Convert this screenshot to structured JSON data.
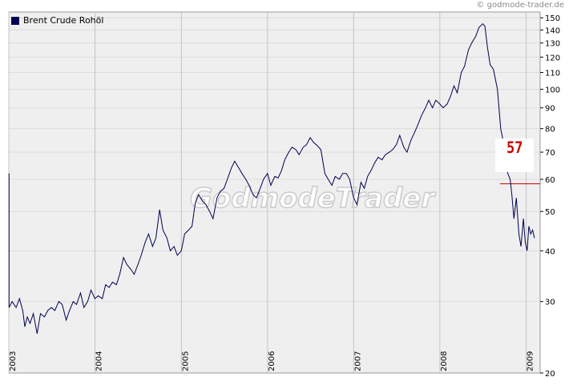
{
  "copyright": "© godmode-trader.de",
  "watermark": "GodmodeTrader",
  "colors": {
    "line": "#000050",
    "plot_bg": "#efefef",
    "grid": "#dcdcdc",
    "marker": "#cc0000"
  },
  "callout": {
    "label": "57",
    "level": 58.5
  },
  "chart_data": {
    "type": "line",
    "title": "",
    "xlabel": "",
    "ylabel": "",
    "yscale": "log",
    "ylim": [
      20,
      155
    ],
    "xlim": [
      "2003-01-01",
      "2009-03-01"
    ],
    "grid": true,
    "legend_position": "top-left",
    "y_ticks": [
      20,
      30,
      40,
      50,
      60,
      70,
      80,
      90,
      100,
      110,
      120,
      130,
      140,
      150
    ],
    "x_ticks": [
      "2003",
      "2004",
      "2005",
      "2006",
      "2007",
      "2008",
      "2009"
    ],
    "series": [
      {
        "name": "Brent Crude Rohöl",
        "x": [
          "2003-01-02",
          "2003-01-15",
          "2003-02-01",
          "2003-02-15",
          "2003-03-01",
          "2003-03-10",
          "2003-03-20",
          "2003-04-01",
          "2003-04-15",
          "2003-05-01",
          "2003-05-15",
          "2003-06-01",
          "2003-06-15",
          "2003-07-01",
          "2003-07-15",
          "2003-08-01",
          "2003-08-15",
          "2003-09-01",
          "2003-09-15",
          "2003-10-01",
          "2003-10-15",
          "2003-11-01",
          "2003-11-15",
          "2003-12-01",
          "2003-12-15",
          "2004-01-01",
          "2004-01-15",
          "2004-02-01",
          "2004-02-15",
          "2004-03-01",
          "2004-03-15",
          "2004-04-01",
          "2004-04-15",
          "2004-05-01",
          "2004-05-15",
          "2004-06-01",
          "2004-06-15",
          "2004-07-01",
          "2004-07-15",
          "2004-08-01",
          "2004-08-15",
          "2004-09-01",
          "2004-09-15",
          "2004-10-01",
          "2004-10-15",
          "2004-11-01",
          "2004-11-15",
          "2004-12-01",
          "2004-12-15",
          "2005-01-01",
          "2005-01-15",
          "2005-02-01",
          "2005-02-15",
          "2005-03-01",
          "2005-03-15",
          "2005-04-01",
          "2005-04-15",
          "2005-05-01",
          "2005-05-15",
          "2005-06-01",
          "2005-06-15",
          "2005-07-01",
          "2005-07-15",
          "2005-08-01",
          "2005-08-15",
          "2005-09-01",
          "2005-09-15",
          "2005-10-01",
          "2005-10-15",
          "2005-11-01",
          "2005-11-15",
          "2005-12-01",
          "2005-12-15",
          "2006-01-01",
          "2006-01-15",
          "2006-02-01",
          "2006-02-15",
          "2006-03-01",
          "2006-03-15",
          "2006-04-01",
          "2006-04-15",
          "2006-05-01",
          "2006-05-15",
          "2006-06-01",
          "2006-06-15",
          "2006-07-01",
          "2006-07-15",
          "2006-08-01",
          "2006-08-15",
          "2006-09-01",
          "2006-09-15",
          "2006-10-01",
          "2006-10-15",
          "2006-11-01",
          "2006-11-15",
          "2006-12-01",
          "2006-12-15",
          "2007-01-01",
          "2007-01-15",
          "2007-02-01",
          "2007-02-15",
          "2007-03-01",
          "2007-03-15",
          "2007-04-01",
          "2007-04-15",
          "2007-05-01",
          "2007-05-15",
          "2007-06-01",
          "2007-06-15",
          "2007-07-01",
          "2007-07-15",
          "2007-08-01",
          "2007-08-15",
          "2007-09-01",
          "2007-09-15",
          "2007-10-01",
          "2007-10-15",
          "2007-11-01",
          "2007-11-15",
          "2007-12-01",
          "2007-12-15",
          "2008-01-01",
          "2008-01-15",
          "2008-02-01",
          "2008-02-15",
          "2008-03-01",
          "2008-03-15",
          "2008-04-01",
          "2008-04-15",
          "2008-05-01",
          "2008-05-15",
          "2008-06-01",
          "2008-06-15",
          "2008-07-01",
          "2008-07-10",
          "2008-07-20",
          "2008-08-01",
          "2008-08-15",
          "2008-09-01",
          "2008-09-15",
          "2008-10-01",
          "2008-10-15",
          "2008-10-25",
          "2008-11-01",
          "2008-11-10",
          "2008-11-20",
          "2008-12-01",
          "2008-12-10",
          "2008-12-20",
          "2008-12-28",
          "2009-01-05",
          "2009-01-12",
          "2009-01-20",
          "2009-01-28",
          "2009-02-05"
        ],
        "values": [
          29.0,
          30.0,
          29.0,
          30.5,
          28.5,
          26.0,
          27.5,
          26.5,
          28.0,
          25.0,
          28.0,
          27.5,
          28.5,
          29.0,
          28.5,
          30.0,
          29.5,
          27.0,
          28.5,
          30.0,
          29.5,
          31.5,
          29.0,
          30.0,
          32.0,
          30.5,
          31.0,
          30.5,
          33.0,
          32.5,
          33.5,
          33.0,
          35.0,
          38.5,
          37.0,
          36.0,
          35.0,
          37.0,
          39.0,
          42.0,
          44.0,
          41.0,
          43.0,
          50.5,
          45.0,
          43.0,
          40.0,
          41.0,
          39.0,
          40.0,
          44.0,
          45.0,
          46.0,
          52.5,
          55.0,
          53.0,
          52.0,
          50.0,
          48.0,
          54.0,
          56.0,
          57.0,
          60.0,
          64.0,
          66.5,
          64.0,
          62.0,
          60.0,
          58.0,
          55.0,
          54.0,
          57.0,
          60.0,
          62.0,
          58.0,
          61.0,
          60.5,
          63.0,
          67.0,
          70.0,
          72.0,
          71.0,
          69.0,
          72.0,
          73.0,
          76.0,
          74.0,
          72.5,
          71.0,
          62.0,
          60.0,
          58.0,
          61.0,
          60.0,
          62.0,
          62.0,
          60.0,
          54.0,
          52.0,
          59.0,
          57.0,
          61.0,
          63.0,
          66.0,
          68.0,
          67.0,
          69.0,
          70.0,
          71.0,
          73.0,
          77.0,
          72.0,
          70.0,
          75.0,
          78.0,
          82.0,
          86.0,
          90.0,
          94.0,
          90.0,
          94.0,
          92.0,
          90.0,
          92.0,
          96.0,
          102.0,
          98.0,
          110.0,
          114.0,
          125.0,
          130.0,
          135.0,
          142.0,
          145.0,
          143.0,
          128.0,
          115.0,
          112.0,
          100.0,
          80.0,
          72.0,
          62.0,
          60.0,
          55.0,
          48.0,
          54.0,
          44.0,
          41.0,
          48.0,
          42.0,
          40.0,
          46.0,
          44.0,
          45.0,
          43.0
        ]
      }
    ]
  }
}
